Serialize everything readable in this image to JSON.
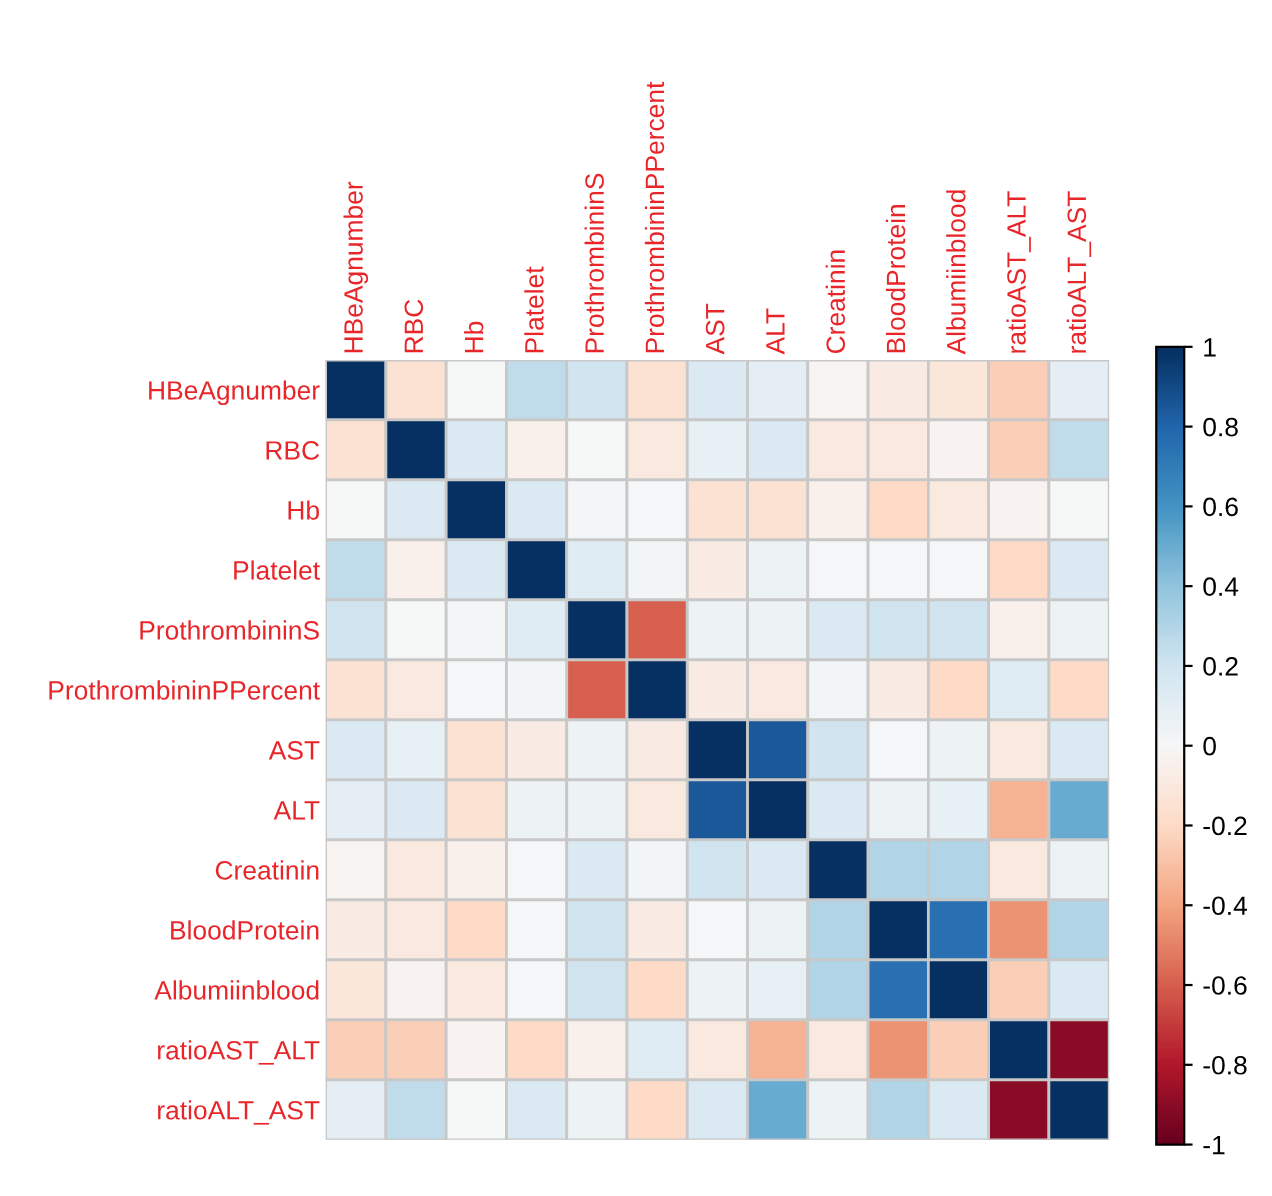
{
  "chart_data": {
    "type": "heatmap",
    "categories": [
      "HBeAgnumber",
      "RBC",
      "Hb",
      "Platelet",
      "ProthrombininS",
      "ProthrombininPPercent",
      "AST",
      "ALT",
      "Creatinin",
      "BloodProtein",
      "Albumiinblood",
      "ratioAST_ALT",
      "ratioALT_AST"
    ],
    "y_categories": [
      "HBeAgnumber",
      "RBC",
      "Hb",
      "Platelet",
      "ProthrombininS",
      "ProthrombininPPercent",
      "AST",
      "ALT",
      "Creatinin",
      "BloodProtein",
      "Albumiinblood",
      "ratioAST_ALT",
      "ratioALT_AST"
    ],
    "cells": [
      [
        1,
        -0.15,
        0,
        0.25,
        0.2,
        -0.15,
        0.15,
        0.1,
        -0.02,
        -0.08,
        -0.12,
        -0.25,
        0.1
      ],
      [
        -0.15,
        1,
        0.15,
        -0.05,
        0,
        -0.1,
        0.08,
        0.15,
        -0.1,
        -0.1,
        -0.03,
        -0.25,
        0.25
      ],
      [
        0,
        0.15,
        1,
        0.15,
        0.02,
        0.01,
        -0.15,
        -0.15,
        -0.05,
        -0.2,
        -0.1,
        -0.03,
        0
      ],
      [
        0.25,
        -0.05,
        0.15,
        1,
        0.12,
        0.03,
        -0.08,
        0.05,
        0.01,
        0.01,
        0.01,
        -0.2,
        0.15
      ],
      [
        0.2,
        0,
        0.02,
        0.12,
        1,
        -0.6,
        0.05,
        0.05,
        0.15,
        0.2,
        0.2,
        -0.05,
        0.05
      ],
      [
        -0.15,
        -0.1,
        0.01,
        0.03,
        -0.6,
        1,
        -0.08,
        -0.1,
        0.03,
        -0.08,
        -0.2,
        0.12,
        -0.2
      ],
      [
        0.15,
        0.08,
        -0.15,
        -0.08,
        0.05,
        -0.08,
        1,
        0.85,
        0.2,
        0.01,
        0.05,
        -0.1,
        0.15
      ],
      [
        0.1,
        0.15,
        -0.15,
        0.05,
        0.05,
        -0.1,
        0.85,
        1,
        0.15,
        0.05,
        0.08,
        -0.35,
        0.5
      ],
      [
        -0.02,
        -0.1,
        -0.05,
        0.01,
        0.15,
        0.03,
        0.2,
        0.15,
        1,
        0.3,
        0.3,
        -0.1,
        0.05
      ],
      [
        -0.08,
        -0.1,
        -0.2,
        0.01,
        0.2,
        -0.08,
        0.01,
        0.05,
        0.3,
        1,
        0.75,
        -0.45,
        0.3
      ],
      [
        -0.12,
        -0.03,
        -0.1,
        0.01,
        0.2,
        -0.2,
        0.05,
        0.08,
        0.3,
        0.75,
        1,
        -0.25,
        0.15
      ],
      [
        -0.25,
        -0.25,
        -0.03,
        -0.2,
        -0.05,
        0.12,
        -0.1,
        -0.35,
        -0.1,
        -0.45,
        -0.25,
        1,
        -0.9
      ],
      [
        0.1,
        0.25,
        0,
        0.15,
        0.05,
        -0.2,
        0.15,
        0.5,
        0.05,
        0.3,
        0.15,
        -0.9,
        1
      ]
    ],
    "clim": [
      -1,
      1
    ],
    "cticks": [
      -1,
      -0.8,
      -0.6,
      -0.4,
      -0.2,
      0,
      0.2,
      0.4,
      0.6,
      0.8,
      1
    ]
  }
}
